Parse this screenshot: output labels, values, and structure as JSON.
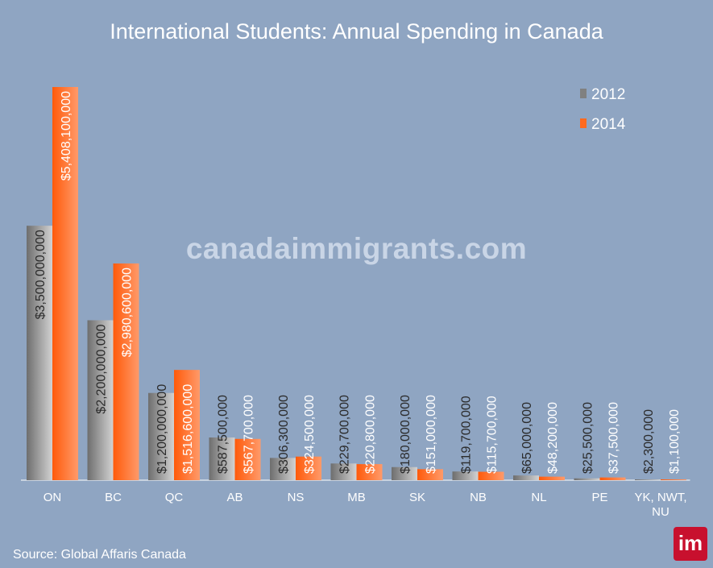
{
  "chart_data": {
    "type": "bar",
    "title": "International Students: Annual Spending in Canada",
    "categories": [
      "ON",
      "BC",
      "QC",
      "AB",
      "NS",
      "MB",
      "SK",
      "NB",
      "NL",
      "PE",
      "YK, NWT, NU"
    ],
    "series": [
      {
        "name": "2012",
        "color": "#808080",
        "values": [
          3500000000,
          2200000000,
          1200000000,
          587500000,
          306300000,
          229700000,
          180000000,
          119700000,
          65000000,
          25500000,
          2300000
        ],
        "labels": [
          "$3,500,000,000",
          "$2,200,000,000",
          "$1,200,000,000",
          "$587,500,000",
          "$306,300,000",
          "$229,700,000",
          "$180,000,000",
          "$119,700,000",
          "$65,000,000",
          "$25,500,000",
          "$2,300,000"
        ]
      },
      {
        "name": "2014",
        "color": "#ff6a1f",
        "values": [
          5408100000,
          2980600000,
          1516600000,
          567700000,
          324500000,
          220800000,
          151000000,
          115700000,
          48200000,
          37500000,
          1100000
        ],
        "labels": [
          "$5,408,100,000",
          "$2,980,600,000",
          "$1,516,600,000",
          "$567,700,000",
          "$324,500,000",
          "$220,800,000",
          "$151,000,000",
          "$115,700,000",
          "$48,200,000",
          "$37,500,000",
          "$1,100,000"
        ]
      }
    ],
    "ylim": [
      0,
      5408100000
    ],
    "xlabel": "",
    "ylabel": "",
    "grid": false,
    "legend": "top-right"
  },
  "watermark": "canadaimmigrants.com",
  "source": "Source: Global Affaris Canada",
  "logo": "im"
}
